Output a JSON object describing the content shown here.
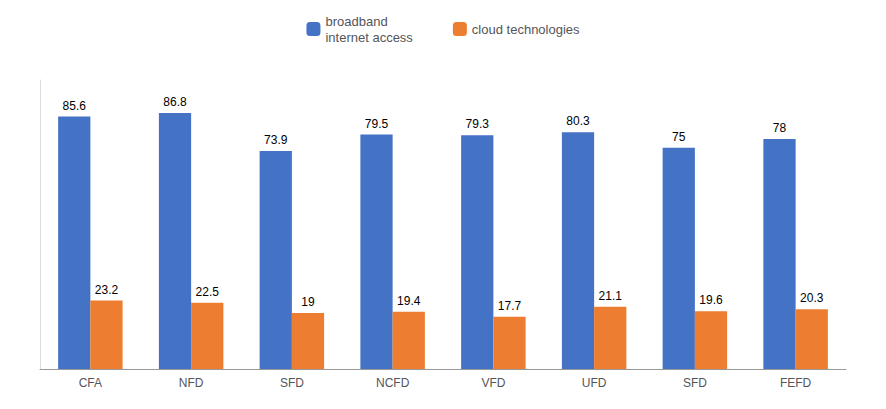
{
  "chart_data": {
    "type": "bar",
    "categories": [
      "CFA",
      "NFD",
      "SFD",
      "NCFD",
      "VFD",
      "UFD",
      "SFD",
      "FEFD"
    ],
    "series": [
      {
        "name": "broadband\ninternet access",
        "color": "#4472C4",
        "values": [
          85.6,
          86.8,
          73.9,
          79.5,
          79.3,
          80.3,
          75.0,
          78.0
        ]
      },
      {
        "name": "cloud technologies",
        "color": "#ED7D31",
        "values": [
          23.2,
          22.5,
          19.0,
          19.4,
          17.7,
          21.1,
          19.6,
          20.3
        ]
      }
    ],
    "ylim": [
      0,
      98
    ],
    "data_labels": true,
    "legend": "top",
    "tick_labels": "x",
    "grid": false
  }
}
